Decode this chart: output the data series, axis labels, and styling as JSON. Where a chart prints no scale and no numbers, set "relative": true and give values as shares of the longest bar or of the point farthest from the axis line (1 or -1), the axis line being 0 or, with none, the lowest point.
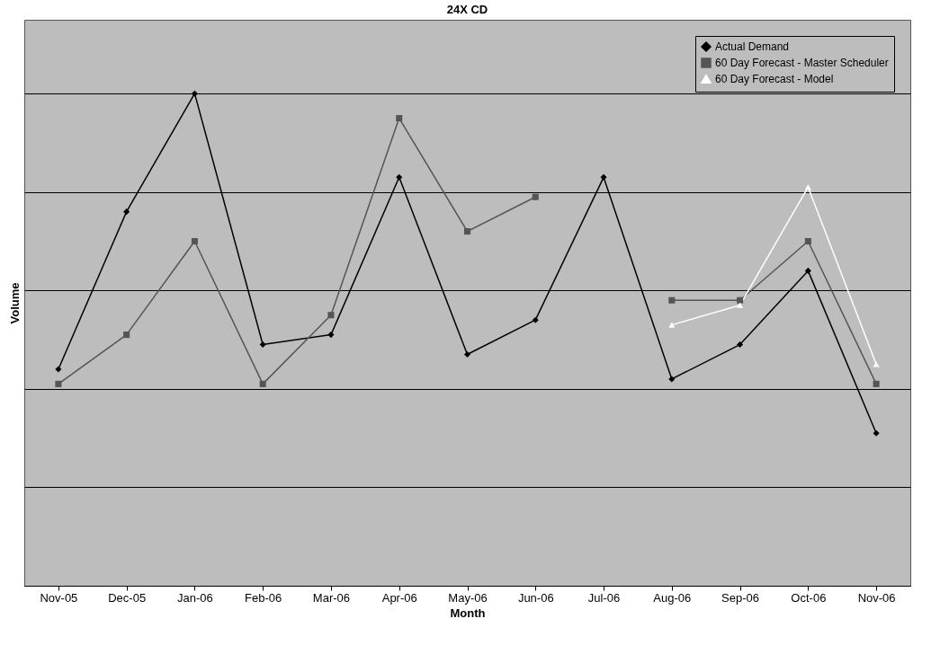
{
  "chart_data": {
    "type": "line",
    "title": "24X CD",
    "xlabel": "Month",
    "ylabel": "Volume",
    "relative": true,
    "grid": "y",
    "legend": "top right",
    "categories": [
      "Nov-05",
      "Dec-05",
      "Jan-06",
      "Feb-06",
      "Mar-06",
      "Apr-06",
      "May-06",
      "Jun-06",
      "Jul-06",
      "Aug-06",
      "Sep-06",
      "Oct-06",
      "Nov-06"
    ],
    "series": [
      {
        "name": "Actual Demand",
        "color": "#000000",
        "marker": "diamond",
        "values": [
          0.44,
          0.76,
          1,
          0.49,
          0.51,
          0.83,
          0.47,
          0.54,
          0.83,
          0.42,
          0.49,
          0.64,
          0.31
        ]
      },
      {
        "name": "60 Day Forecast - Master Scheduler",
        "color": "#555555",
        "marker": "square",
        "values": [
          0.41,
          0.51,
          0.7,
          0.41,
          0.55,
          0.95,
          0.72,
          0.79,
          null,
          0.58,
          0.58,
          0.7,
          0.41
        ]
      },
      {
        "name": "60 Day Forecast - Model",
        "color": "#ffffff",
        "marker": "triangle",
        "values": [
          null,
          null,
          null,
          null,
          null,
          null,
          null,
          null,
          null,
          0.53,
          0.57,
          0.81,
          0.45
        ]
      }
    ]
  }
}
